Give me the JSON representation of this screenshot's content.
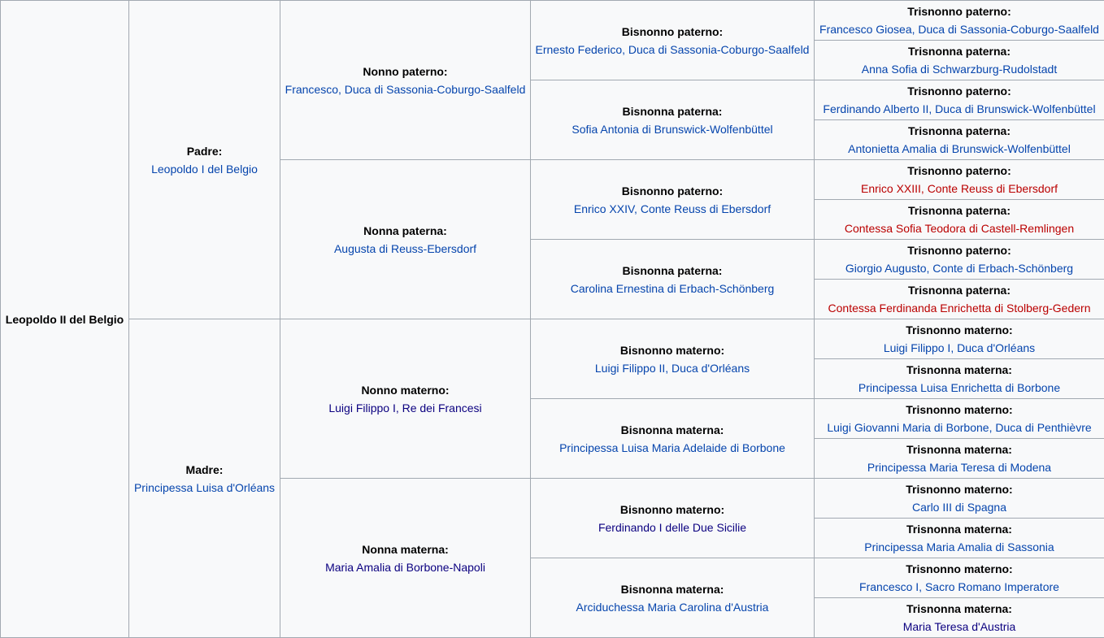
{
  "subject": {
    "name": "Leopoldo II del Belgio"
  },
  "father": {
    "role": "Padre:",
    "name": "Leopoldo I del Belgio"
  },
  "mother": {
    "role": "Madre:",
    "name": "Principessa Luisa d'Orléans"
  },
  "grandparents": [
    {
      "role": "Nonno paterno:",
      "name": "Francesco, Duca di Sassonia-Coburgo-Saalfeld"
    },
    {
      "role": "Nonna paterna:",
      "name": "Augusta di Reuss-Ebersdorf"
    },
    {
      "role": "Nonno materno:",
      "name": "Luigi Filippo I, Re dei Francesi"
    },
    {
      "role": "Nonna materna:",
      "name": "Maria Amalia di Borbone-Napoli"
    }
  ],
  "great_grandparents": [
    {
      "role": "Bisnonno paterno:",
      "name": "Ernesto Federico, Duca di Sassonia-Coburgo-Saalfeld"
    },
    {
      "role": "Bisnonna paterna:",
      "name": "Sofia Antonia di Brunswick-Wolfenbüttel"
    },
    {
      "role": "Bisnonno paterno:",
      "name": "Enrico XXIV, Conte Reuss di Ebersdorf"
    },
    {
      "role": "Bisnonna paterna:",
      "name": "Carolina Ernestina di Erbach-Schönberg"
    },
    {
      "role": "Bisnonno materno:",
      "name": "Luigi Filippo II, Duca d'Orléans"
    },
    {
      "role": "Bisnonna materna:",
      "name": "Principessa Luisa Maria Adelaide di Borbone"
    },
    {
      "role": "Bisnonno materno:",
      "name": "Ferdinando I delle Due Sicilie"
    },
    {
      "role": "Bisnonna materna:",
      "name": "Arciduchessa Maria Carolina d'Austria"
    }
  ],
  "great_great_grandparents": [
    {
      "role": "Trisnonno paterno:",
      "name": "Francesco Giosea, Duca di Sassonia-Coburgo-Saalfeld"
    },
    {
      "role": "Trisnonna paterna:",
      "name": "Anna Sofia di Schwarzburg-Rudolstadt"
    },
    {
      "role": "Trisnonno paterno:",
      "name": "Ferdinando Alberto II, Duca di Brunswick-Wolfenbüttel"
    },
    {
      "role": "Trisnonna paterna:",
      "name": "Antonietta Amalia di Brunswick-Wolfenbüttel"
    },
    {
      "role": "Trisnonno paterno:",
      "name": "Enrico XXIII, Conte Reuss di Ebersdorf"
    },
    {
      "role": "Trisnonna paterna:",
      "name": "Contessa Sofia Teodora di Castell-Remlingen"
    },
    {
      "role": "Trisnonno paterno:",
      "name": "Giorgio Augusto, Conte di Erbach-Schönberg"
    },
    {
      "role": "Trisnonna paterna:",
      "name": "Contessa Ferdinanda Enrichetta di Stolberg-Gedern"
    },
    {
      "role": "Trisnonno materno:",
      "name": "Luigi Filippo I, Duca d'Orléans"
    },
    {
      "role": "Trisnonna materna:",
      "name": "Principessa Luisa Enrichetta di Borbone"
    },
    {
      "role": "Trisnonno materno:",
      "name": "Luigi Giovanni Maria di Borbone, Duca di Penthièvre"
    },
    {
      "role": "Trisnonna materna:",
      "name": "Principessa Maria Teresa di Modena"
    },
    {
      "role": "Trisnonno materno:",
      "name": "Carlo III di Spagna"
    },
    {
      "role": "Trisnonna materna:",
      "name": "Principessa Maria Amalia di Sassonia"
    },
    {
      "role": "Trisnonno materno:",
      "name": "Francesco I, Sacro Romano Imperatore"
    },
    {
      "role": "Trisnonna materna:",
      "name": "Maria Teresa d'Austria"
    }
  ],
  "colors": {
    "link": "#0645ad",
    "visited_link": "#0b0080",
    "redlink": "#ba0000",
    "border": "#a2a9b1",
    "background": "#f8f9fa"
  }
}
